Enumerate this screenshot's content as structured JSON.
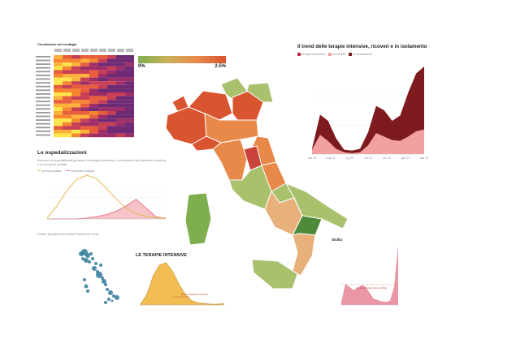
{
  "heatmap": {
    "title": "Circolazione del contagio",
    "rows": 22,
    "cols": 9,
    "colors": [
      "#fde54a",
      "#fcb23a",
      "#f5862f",
      "#e85d3c",
      "#c83f55",
      "#9e2e68",
      "#6e2a74"
    ]
  },
  "scale": {
    "min_label": "0%",
    "max_label": "2.5%",
    "colors": [
      "#7fae4f",
      "#c9b25a",
      "#e8894a",
      "#d9552f"
    ]
  },
  "trend": {
    "title": "Il trend delle terapie intensive, ricoveri e in isolamento",
    "legend": [
      "terapia intensiva",
      "ricoverati",
      "in isolamento"
    ],
    "colors": [
      "#c0274a",
      "#f2a0a0",
      "#7d1a1e"
    ],
    "x_ticks": [
      "mar '20",
      "mag '20",
      "lug '20",
      "set '20",
      "nov '20",
      "gen '21",
      "mar '21"
    ],
    "values_isolamento": [
      0.06,
      0.45,
      0.38,
      0.18,
      0.05,
      0.04,
      0.06,
      0.25,
      0.55,
      0.5,
      0.38,
      0.44,
      0.7,
      0.92,
      1.0
    ],
    "values_ricoverati": [
      0.05,
      0.22,
      0.15,
      0.06,
      0.02,
      0.01,
      0.02,
      0.1,
      0.24,
      0.2,
      0.16,
      0.15,
      0.2,
      0.26,
      0.28
    ]
  },
  "osped": {
    "title": "Le ospedalizzazioni",
    "subtitle": "Numero di ospedalizzati (persone in terapia intensiva o con sintomi forti) durante la prima e la seconda ondata",
    "legend": [
      "prima ondata",
      "seconda ondata"
    ],
    "colors": [
      "#e6b84a",
      "#e87a86"
    ],
    "note": "Fonte: Dipartimento della Protezione Civile"
  },
  "terapie": {
    "title": "LE TERAPIE INTENSIVE",
    "color": "#f2bd52",
    "annotation": "picco di terapie intensive"
  },
  "sicilia": {
    "title": "Sicilia",
    "color": "#d9405a",
    "annotation": "ricoverati nella prima ondata"
  },
  "map": {
    "colors": {
      "green": "#7fae4f",
      "lightgreen": "#a9c06c",
      "sand": "#e8b07a",
      "orange": "#e8894a",
      "darkorange": "#d9552f",
      "red": "#c9433a",
      "darkgreen": "#4f8a3a"
    }
  }
}
